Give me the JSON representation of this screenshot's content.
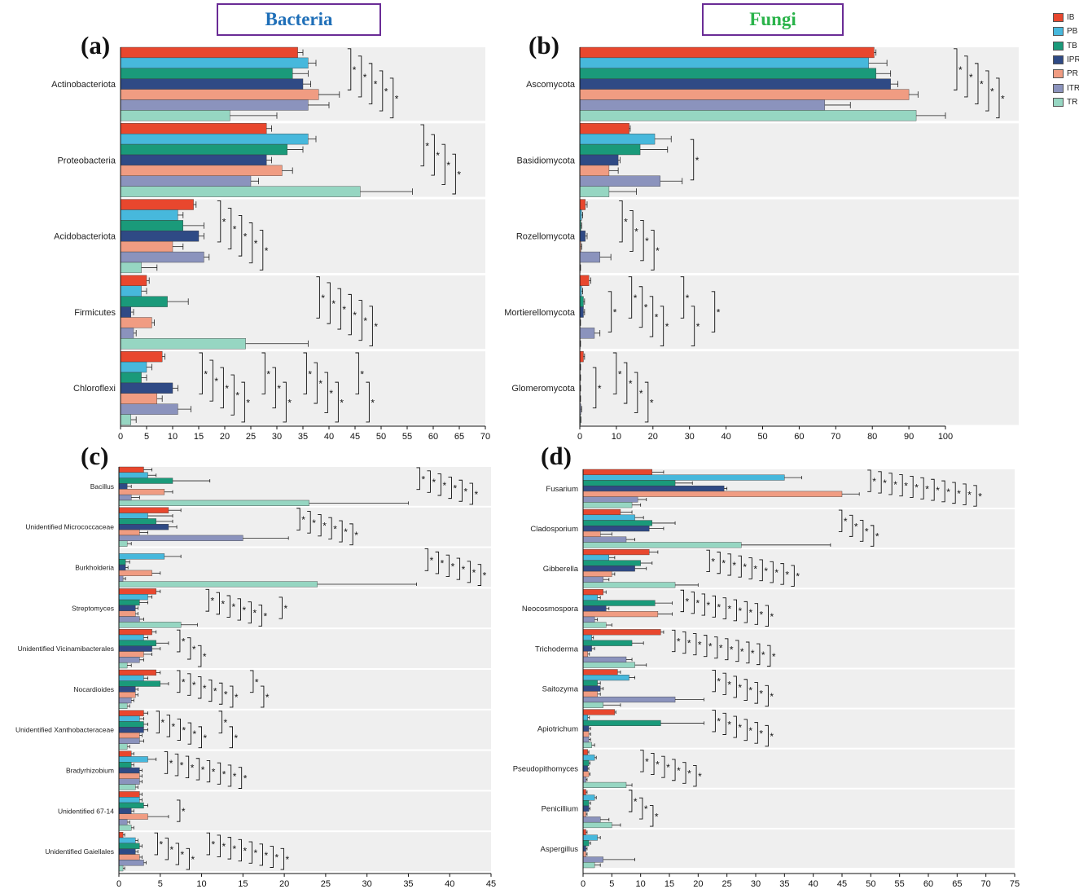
{
  "headers": {
    "bacteria": {
      "text": "Bacteria",
      "color": "#1f6fb8"
    },
    "fungi": {
      "text": "Fungi",
      "color": "#2ab34a"
    }
  },
  "panel_labels": {
    "a": "(a)",
    "b": "(b)",
    "c": "(c)",
    "d": "(d)"
  },
  "legend": [
    {
      "label": "IB",
      "color": "#e8472e"
    },
    {
      "label": "PB",
      "color": "#47b8dc"
    },
    {
      "label": "TB",
      "color": "#1a9a7a"
    },
    {
      "label": "IPR",
      "color": "#2f4a85"
    },
    {
      "label": "PR",
      "color": "#f09c82"
    },
    {
      "label": "ITR",
      "color": "#8b93bd"
    },
    {
      "label": "TR",
      "color": "#96d6c2"
    }
  ],
  "chart_data": [
    {
      "id": "a",
      "type": "bar",
      "orientation": "horizontal",
      "title": "Bacteria",
      "series_names": [
        "IB",
        "PB",
        "TB",
        "IPR",
        "PR",
        "ITR",
        "TR"
      ],
      "categories": [
        "Actinobacteriota",
        "Proteobacteria",
        "Acidobacteriota",
        "Firmicutes",
        "Chloroflexi"
      ],
      "values": [
        [
          34,
          36,
          33,
          35,
          38,
          36,
          21
        ],
        [
          28,
          36,
          32,
          28,
          31,
          25,
          46
        ],
        [
          14,
          11,
          12,
          15,
          10,
          16,
          4
        ],
        [
          5,
          4,
          9,
          2,
          6,
          2.5,
          24
        ],
        [
          8,
          5,
          4,
          10,
          7,
          11,
          2
        ]
      ],
      "errors": [
        [
          1,
          1.5,
          3,
          1.5,
          4,
          4,
          9
        ],
        [
          1,
          1.5,
          3,
          1,
          2,
          1.5,
          10
        ],
        [
          0.5,
          1,
          4,
          1,
          2,
          1,
          3
        ],
        [
          0.5,
          1,
          4,
          0.5,
          0.5,
          0.5,
          12
        ],
        [
          0.5,
          1,
          1,
          1,
          1,
          2.5,
          1
        ]
      ],
      "significance": [
        {
          "left": "*",
          "groups": [
            "* * * * *"
          ]
        },
        {
          "left": "*",
          "groups": [
            "* * * *"
          ]
        },
        {
          "left": "*",
          "groups": [
            "* * * * *"
          ]
        },
        {
          "left": "*",
          "groups": [
            "* * * * * *"
          ]
        },
        {
          "left": "*",
          "groups": [
            "* * * * *",
            "* * *",
            "* * * *",
            "* *"
          ]
        }
      ],
      "xticks": [
        0,
        5,
        10,
        15,
        20,
        25,
        30,
        35,
        40,
        45,
        50,
        55,
        60,
        65,
        70
      ],
      "xlim": [
        0,
        70
      ]
    },
    {
      "id": "b",
      "type": "bar",
      "orientation": "horizontal",
      "title": "Fungi",
      "series_names": [
        "IB",
        "PB",
        "TB",
        "IPR",
        "PR",
        "ITR",
        "TR"
      ],
      "categories": [
        "Ascomycota",
        "Basidiomycota",
        "Rozellomycota",
        "Mortierellomycota",
        "Glomeromycota"
      ],
      "values": [
        [
          80.5,
          79,
          81,
          85,
          90,
          67,
          92
        ],
        [
          13.5,
          20.5,
          16.5,
          10.5,
          8,
          22,
          8
        ],
        [
          1.5,
          0.5,
          0.3,
          1.5,
          0.3,
          5.5,
          0.1
        ],
        [
          2.5,
          0.5,
          1,
          1,
          0.1,
          4,
          0.1
        ],
        [
          1,
          0.1,
          0.1,
          0.1,
          0.1,
          0.3,
          0.2
        ]
      ],
      "errors": [
        [
          0.5,
          5,
          4,
          2,
          2.5,
          7,
          8
        ],
        [
          0.3,
          4.5,
          7.5,
          0.5,
          2.5,
          6,
          7.5
        ],
        [
          0.5,
          0.3,
          0.2,
          0.5,
          0.2,
          3,
          0.1
        ],
        [
          0.5,
          0.3,
          0.3,
          0.3,
          0.1,
          1.5,
          0.1
        ],
        [
          0.3,
          0.1,
          0.1,
          0.1,
          0.1,
          0.2,
          0.1
        ]
      ],
      "significance": [
        {
          "groups": [
            "* * * * *"
          ]
        },
        {
          "groups": [
            "*"
          ]
        },
        {
          "groups": [
            "* * * *"
          ]
        },
        {
          "groups": [
            "*",
            "* * * *",
            "* *",
            "*"
          ]
        },
        {
          "groups": [
            "*",
            "* * * *"
          ]
        }
      ],
      "xticks": [
        0,
        10,
        20,
        30,
        40,
        50,
        60,
        70,
        80,
        90,
        100
      ],
      "xlim": [
        0,
        100
      ]
    },
    {
      "id": "c",
      "type": "bar",
      "orientation": "horizontal",
      "series_names": [
        "IB",
        "PB",
        "TB",
        "IPR",
        "PR",
        "ITR",
        "TR"
      ],
      "categories": [
        "Bacillus",
        "Unidentified Micrococcaceae",
        "Burkholderia",
        "Streptomyces",
        "Unidentified Vicinamibacterales",
        "Nocardioides",
        "Unidentified Xanthobacteraceae",
        "Bradyrhizobium",
        "Unidentified 67-14",
        "Unidentified Gaiellales"
      ],
      "values": [
        [
          3,
          3.5,
          6.5,
          1,
          5.5,
          1.5,
          23
        ],
        [
          6,
          3.5,
          4.5,
          6,
          2.5,
          15,
          1
        ],
        [
          0,
          5.5,
          0.8,
          0.8,
          4,
          0.5,
          24
        ],
        [
          4.5,
          3.5,
          2.5,
          2,
          2,
          2.5,
          7.5
        ],
        [
          4,
          3,
          4.5,
          4,
          3,
          2.5,
          1
        ],
        [
          4.5,
          3,
          5,
          2,
          2,
          1.5,
          1
        ],
        [
          3,
          2.5,
          3,
          3,
          2.5,
          2.5,
          1
        ],
        [
          1.5,
          3.5,
          1.5,
          2.5,
          2.5,
          2.5,
          2
        ],
        [
          2.5,
          2.5,
          3,
          1.5,
          3.5,
          1,
          1.5
        ],
        [
          0.5,
          2,
          2.5,
          2,
          2.5,
          3,
          0.5
        ]
      ],
      "errors": [
        [
          1,
          1,
          4.5,
          0.5,
          1,
          1,
          12
        ],
        [
          1.5,
          3,
          2,
          1,
          1,
          5.5,
          0.5
        ],
        [
          0,
          2,
          0.5,
          0.3,
          1,
          0.3,
          12
        ],
        [
          0.5,
          0.5,
          1,
          0.3,
          0.3,
          0.5,
          2
        ],
        [
          0.5,
          0.5,
          1.5,
          1,
          1,
          0.5,
          0.5
        ],
        [
          0.5,
          0.5,
          1,
          0.3,
          0.3,
          0.3,
          0.3
        ],
        [
          0.5,
          0.5,
          0.5,
          0.5,
          0.3,
          0.5,
          0.3
        ],
        [
          0.3,
          1,
          0.3,
          0.3,
          0.3,
          0.3,
          0.3
        ],
        [
          0.3,
          0.3,
          0.5,
          0.3,
          2.5,
          0.3,
          0.3
        ],
        [
          0.2,
          0.3,
          0.3,
          0.3,
          0.3,
          0.3,
          0.2
        ]
      ],
      "significance": [
        {
          "groups": [
            "* * * * * *"
          ]
        },
        {
          "groups": [
            "* * * * * *"
          ]
        },
        {
          "groups": [
            "* * * * * *"
          ]
        },
        {
          "groups": [
            "* * * * * *",
            "*"
          ]
        },
        {
          "groups": [
            "* * *"
          ]
        },
        {
          "groups": [
            "* * * * * *",
            "* *"
          ]
        },
        {
          "groups": [
            "* * * * *",
            "* *"
          ]
        },
        {
          "groups": [
            "* * * * * * * *"
          ]
        },
        {
          "groups": [
            "*"
          ]
        },
        {
          "groups": [
            "* * * *",
            "* * * * * * * *"
          ]
        }
      ],
      "xticks": [
        0,
        5,
        10,
        15,
        20,
        25,
        30,
        35,
        40,
        45
      ],
      "xlim": [
        0,
        45
      ]
    },
    {
      "id": "d",
      "type": "bar",
      "orientation": "horizontal",
      "series_names": [
        "IB",
        "PB",
        "TB",
        "IPR",
        "PR",
        "ITR",
        "TR"
      ],
      "categories": [
        "Fusarium",
        "Cladosporium",
        "Gibberella",
        "Neocosmospora",
        "Trichoderma",
        "Saitozyma",
        "Apiotrichum",
        "Pseudopithomyces",
        "Penicillium",
        "Aspergillus"
      ],
      "values": [
        [
          12,
          35,
          16,
          24.5,
          45,
          9.5,
          8.5
        ],
        [
          6.5,
          9,
          12,
          11.5,
          3,
          7.5,
          27.5
        ],
        [
          11.5,
          4.5,
          10,
          9,
          5,
          3.5,
          16
        ],
        [
          3.5,
          2.5,
          12.5,
          4,
          13,
          2,
          4
        ],
        [
          13.5,
          1.5,
          8.5,
          1.5,
          0.8,
          7.5,
          9
        ],
        [
          6,
          8,
          2.5,
          3,
          2.5,
          16,
          3.5
        ],
        [
          5.5,
          0.8,
          13.5,
          1,
          1,
          1,
          1.5
        ],
        [
          0.8,
          2,
          1,
          0.8,
          1,
          0.5,
          7.5
        ],
        [
          0.5,
          2,
          1,
          1,
          0.5,
          3,
          5
        ],
        [
          0.5,
          2.5,
          1,
          0.5,
          0.5,
          3.5,
          2
        ]
      ],
      "errors": [
        [
          2,
          3,
          3,
          0.5,
          3,
          1.5,
          1.5
        ],
        [
          2,
          1.5,
          4,
          2.5,
          2,
          1.5,
          15.5
        ],
        [
          1.5,
          1,
          2,
          2,
          0.5,
          1,
          4
        ],
        [
          0.5,
          0.5,
          3,
          0.5,
          2.5,
          0.5,
          1
        ],
        [
          0.5,
          0.3,
          2,
          0.5,
          0.3,
          1,
          2
        ],
        [
          0.5,
          1,
          0.5,
          0.5,
          0.5,
          5,
          3
        ],
        [
          0.2,
          0.3,
          7.5,
          0.3,
          0.3,
          0.3,
          0.5
        ],
        [
          0.2,
          0.3,
          0.2,
          0.2,
          0.2,
          0.2,
          1
        ],
        [
          0.2,
          0.3,
          0.3,
          0.2,
          0.2,
          1.5,
          1.5
        ],
        [
          0.2,
          0.5,
          0.3,
          0.2,
          0.2,
          5.5,
          1
        ]
      ],
      "significance": [
        {
          "groups": [
            "* * * * * * * * * * *"
          ]
        },
        {
          "groups": [
            "* * * *"
          ]
        },
        {
          "groups": [
            "* * * * * * * * *"
          ]
        },
        {
          "groups": [
            "* * * * * * * * *"
          ]
        },
        {
          "groups": [
            "* * * * * * * * * *"
          ]
        },
        {
          "groups": [
            "* * * * * *"
          ]
        },
        {
          "groups": [
            "* * * * * *"
          ]
        },
        {
          "groups": [
            "* * * * * *"
          ]
        },
        {
          "groups": [
            "* * *"
          ]
        },
        {
          "groups": []
        }
      ],
      "xticks": [
        0,
        5,
        10,
        15,
        20,
        25,
        30,
        35,
        40,
        45,
        50,
        55,
        60,
        65,
        70,
        75
      ],
      "xlim": [
        0,
        75
      ]
    }
  ]
}
